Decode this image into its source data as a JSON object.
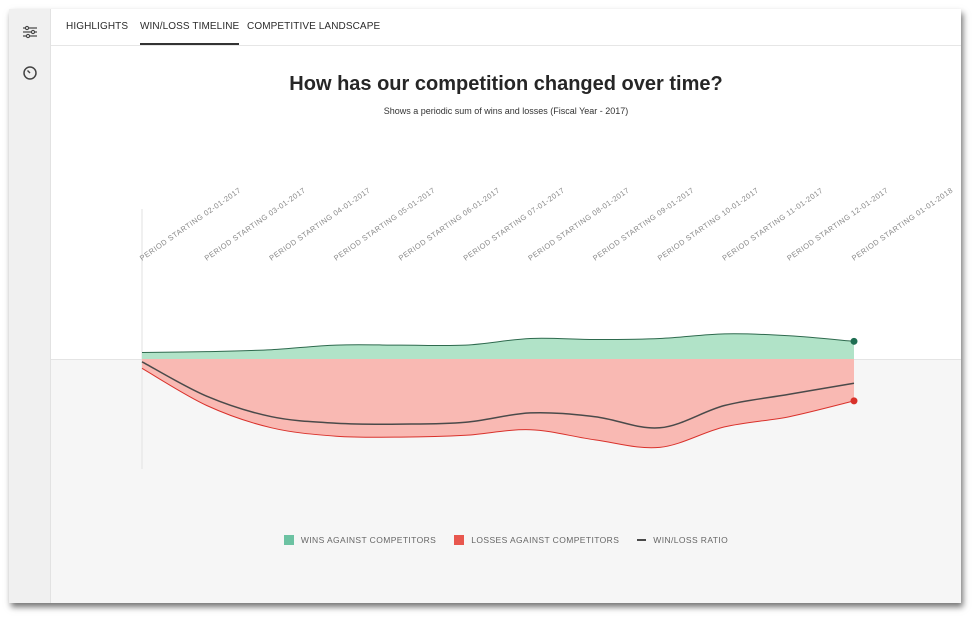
{
  "tabs": [
    {
      "label": "HIGHLIGHTS",
      "active": false
    },
    {
      "label": "WIN/LOSS TIMELINE",
      "active": true
    },
    {
      "label": "COMPETITIVE LANDSCAPE",
      "active": false
    }
  ],
  "sidebar": {
    "icons": [
      "sliders-icon",
      "clock-icon"
    ]
  },
  "colors": {
    "wins_fill": "#b1e3c8",
    "wins_line": "#2e6a4e",
    "wins_dot": "#1f6e52",
    "losses_fill": "#f9b9b3",
    "losses_line": "#d9312b",
    "losses_dot": "#d8312a",
    "ratio_line": "#4a4a4a",
    "legend_wins": "#6cc2a2",
    "legend_losses": "#e8574e"
  },
  "chart_data": {
    "type": "area",
    "title": "How has our competition changed over time?",
    "subtitle": "Shows a periodic sum of wins and losses (Fiscal Year - 2017)",
    "categories": [
      "PERIOD STARTING 02-01-2017",
      "PERIOD STARTING 03-01-2017",
      "PERIOD STARTING 04-01-2017",
      "PERIOD STARTING 05-01-2017",
      "PERIOD STARTING 06-01-2017",
      "PERIOD STARTING 07-01-2017",
      "PERIOD STARTING 08-01-2017",
      "PERIOD STARTING 09-01-2017",
      "PERIOD STARTING 10-01-2017",
      "PERIOD STARTING 11-01-2017",
      "PERIOD STARTING 12-01-2017",
      "PERIOD STARTING 01-01-2018"
    ],
    "series": [
      {
        "name": "WINS AGAINST COMPETITORS",
        "values": [
          7,
          8,
          10,
          15,
          15,
          15,
          22,
          21,
          22,
          27,
          25,
          19
        ]
      },
      {
        "name": "LOSSES AGAINST COMPETITORS",
        "values": [
          -10,
          -50,
          -74,
          -83,
          -84,
          -82,
          -76,
          -87,
          -95,
          -73,
          -62,
          -45
        ]
      },
      {
        "name": "WIN/LOSS RATIO",
        "values": [
          -3,
          -40,
          -62,
          -69,
          -70,
          -68,
          -58,
          -62,
          -74,
          -50,
          -38,
          -26
        ]
      }
    ],
    "legend_position": "bottom",
    "grid": false
  }
}
